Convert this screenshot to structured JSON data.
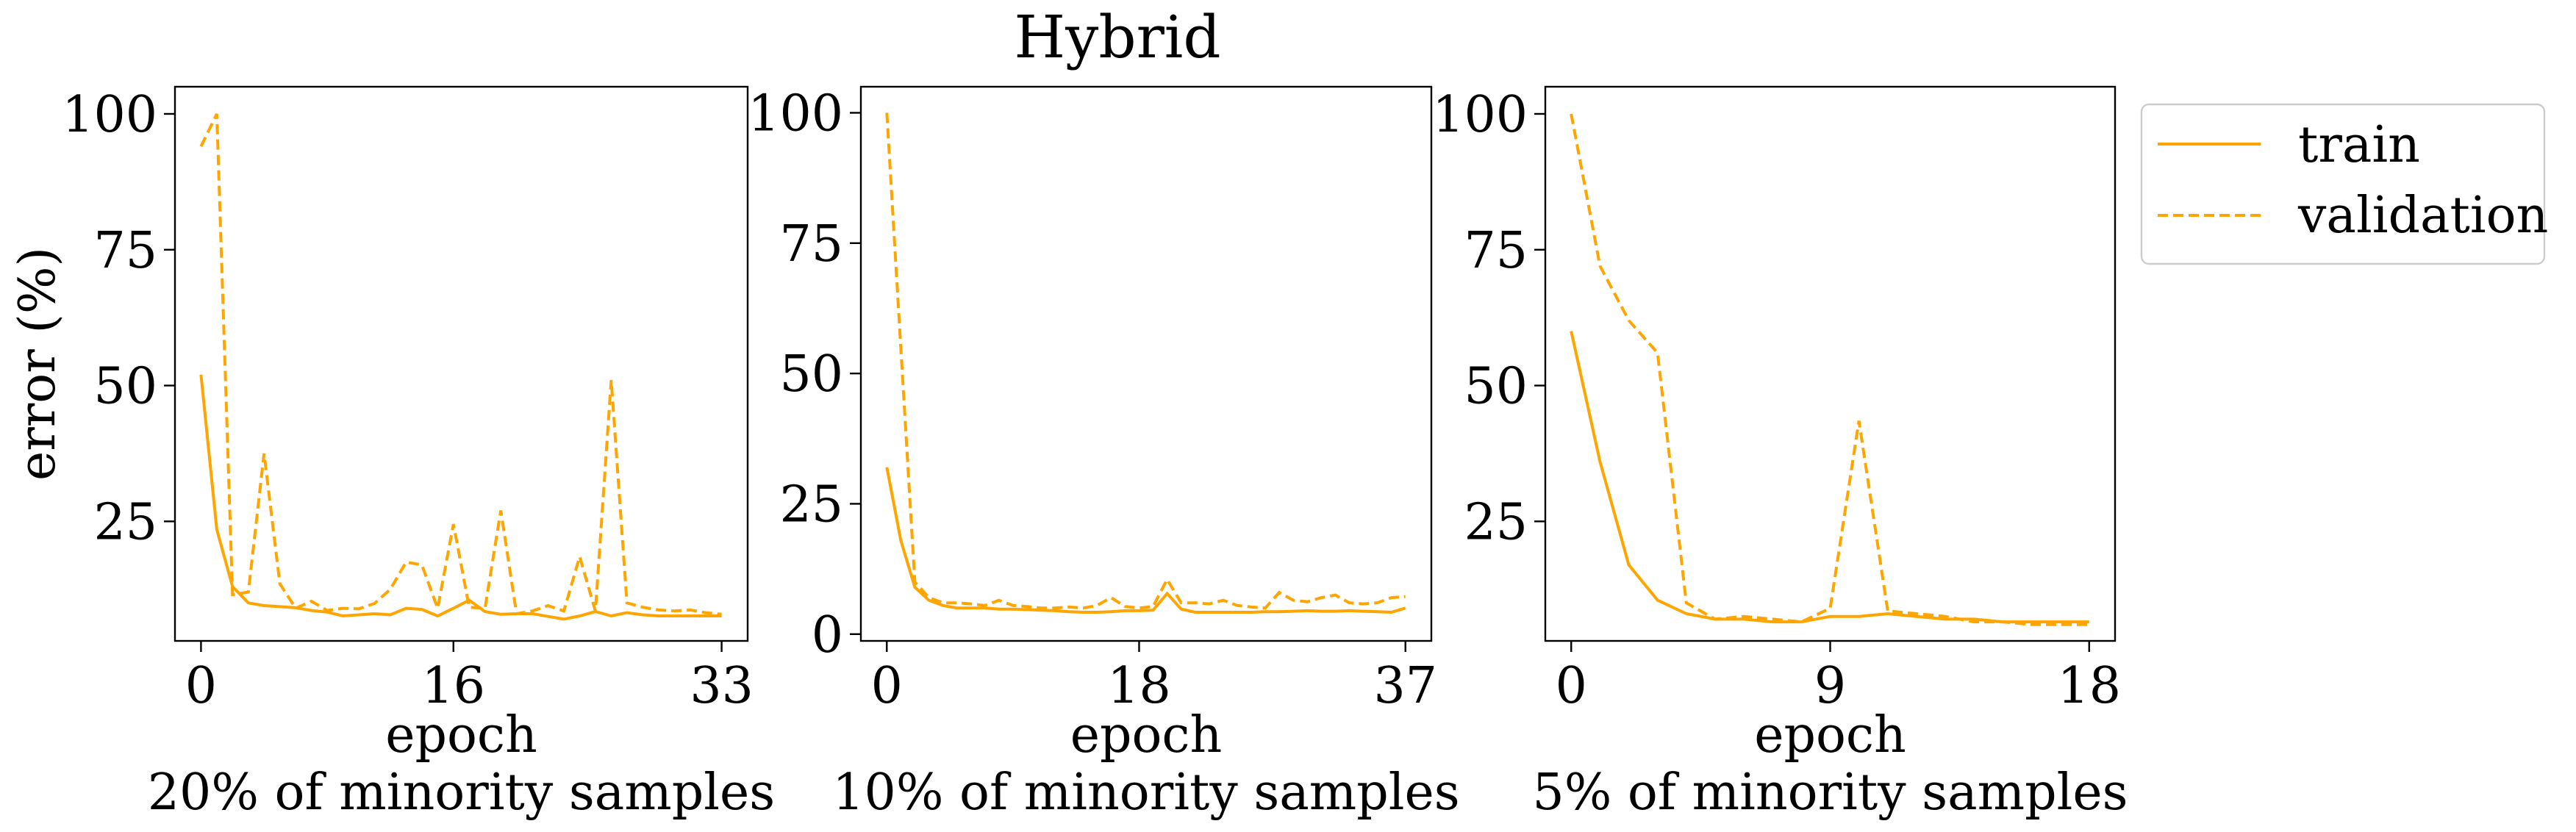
{
  "title": "Hybrid",
  "legend": {
    "train_label": "train",
    "validation_label": "validation",
    "placement": "outside-right-top"
  },
  "colors": {
    "series": "#ffa500"
  },
  "chart_data": [
    {
      "type": "line",
      "title": "",
      "xlabel": "epoch\n20% of minority samples",
      "xlabel_lines": [
        "epoch",
        "20% of minority samples"
      ],
      "ylabel": "error (%)",
      "xlim": [
        -1.65,
        34.65
      ],
      "ylim": [
        3.0,
        105.0
      ],
      "xticks": [
        0,
        16,
        33
      ],
      "yticks": [
        25,
        50,
        75,
        100
      ],
      "series": [
        {
          "name": "train",
          "style": "solid",
          "x": [
            0,
            1,
            2,
            3,
            4,
            5,
            6,
            7,
            8,
            9,
            10,
            11,
            12,
            13,
            14,
            15,
            16,
            17,
            18,
            19,
            20,
            21,
            22,
            23,
            24,
            25,
            26,
            27,
            28,
            29,
            30,
            31,
            32,
            33
          ],
          "y": [
            52,
            23.5,
            13,
            10,
            9.5,
            9.3,
            9.1,
            8.6,
            8.3,
            7.6,
            7.8,
            8,
            7.8,
            9,
            8.8,
            7.6,
            9,
            10.5,
            8.4,
            7.9,
            8,
            8,
            7.5,
            7,
            7.6,
            8.4,
            7.6,
            8.2,
            7.8,
            7.6,
            7.6,
            7.6,
            7.6,
            7.6
          ]
        },
        {
          "name": "validation",
          "style": "dashed",
          "x": [
            0,
            1,
            2,
            3,
            4,
            5,
            6,
            7,
            8,
            9,
            10,
            11,
            12,
            13,
            14,
            15,
            16,
            17,
            18,
            19,
            20,
            21,
            22,
            23,
            24,
            25,
            26,
            27,
            28,
            29,
            30,
            31,
            32,
            33
          ],
          "y": [
            94,
            100,
            11.5,
            12,
            37.5,
            13.5,
            9,
            10.3,
            8.6,
            9,
            8.9,
            9.9,
            12.5,
            17.5,
            17,
            9,
            24.5,
            9.2,
            9,
            27,
            8,
            8.5,
            9.5,
            8.5,
            18.5,
            8.5,
            51,
            10,
            9.2,
            8.7,
            8.5,
            8.7,
            8.2,
            7.9
          ]
        }
      ]
    },
    {
      "type": "line",
      "title": "",
      "xlabel": "epoch\n10% of minority samples",
      "xlabel_lines": [
        "epoch",
        "10% of minority samples"
      ],
      "ylabel": "",
      "xlim": [
        -1.85,
        38.85
      ],
      "ylim": [
        -1.3,
        105.0
      ],
      "xticks": [
        0,
        18,
        37
      ],
      "yticks": [
        0,
        25,
        50,
        75,
        100
      ],
      "series": [
        {
          "name": "train",
          "style": "solid",
          "x": [
            0,
            1,
            2,
            3,
            4,
            5,
            6,
            7,
            8,
            9,
            10,
            11,
            12,
            13,
            14,
            15,
            16,
            17,
            18,
            19,
            20,
            21,
            22,
            23,
            24,
            25,
            26,
            27,
            28,
            29,
            30,
            31,
            32,
            33,
            34,
            35,
            36,
            37
          ],
          "y": [
            32,
            18,
            9,
            6.5,
            5.5,
            5,
            5,
            5,
            4.8,
            4.8,
            4.7,
            4.6,
            4.5,
            4.3,
            4.2,
            4.2,
            4.3,
            4.5,
            4.5,
            4.6,
            7.8,
            4.8,
            4.2,
            4.2,
            4.2,
            4.2,
            4.2,
            4.3,
            4.3,
            4.4,
            4.5,
            4.4,
            4.4,
            4.5,
            4.4,
            4.3,
            4.2,
            5
          ]
        },
        {
          "name": "validation",
          "style": "dashed",
          "x": [
            0,
            1,
            2,
            3,
            4,
            5,
            6,
            7,
            8,
            9,
            10,
            11,
            12,
            13,
            14,
            15,
            16,
            17,
            18,
            19,
            20,
            21,
            22,
            23,
            24,
            25,
            26,
            27,
            28,
            29,
            30,
            31,
            32,
            33,
            34,
            35,
            36,
            37
          ],
          "y": [
            100,
            55,
            10,
            7,
            6,
            6,
            5.8,
            5.5,
            6.5,
            5.5,
            5.3,
            5,
            5,
            5.2,
            5,
            5.5,
            7,
            5.3,
            5,
            5.3,
            10.5,
            6,
            6,
            5.8,
            6.5,
            5.5,
            5.2,
            5,
            8,
            6.5,
            6.2,
            7,
            7.5,
            6,
            5.8,
            6,
            7,
            7.2
          ]
        }
      ]
    },
    {
      "type": "line",
      "title": "",
      "xlabel": "epoch\n5% of minority samples",
      "xlabel_lines": [
        "epoch",
        "5% of minority samples"
      ],
      "ylabel": "",
      "xlim": [
        -0.9,
        18.9
      ],
      "ylim": [
        3.0,
        105.0
      ],
      "xticks": [
        0,
        9,
        18
      ],
      "yticks": [
        25,
        50,
        75,
        100
      ],
      "series": [
        {
          "name": "train",
          "style": "solid",
          "x": [
            0,
            1,
            2,
            3,
            4,
            5,
            6,
            7,
            8,
            9,
            10,
            11,
            12,
            13,
            14,
            15,
            16,
            17,
            18
          ],
          "y": [
            60,
            36,
            17,
            10.5,
            8,
            7,
            7,
            6.5,
            6.5,
            7.5,
            7.5,
            8,
            7.5,
            7,
            7,
            6.5,
            6.5,
            6.5,
            6.5
          ]
        },
        {
          "name": "validation",
          "style": "dashed",
          "x": [
            0,
            1,
            2,
            3,
            4,
            5,
            6,
            7,
            8,
            9,
            10,
            11,
            12,
            13,
            14,
            15,
            16,
            17,
            18
          ],
          "y": [
            100,
            72,
            62,
            56,
            10,
            7,
            7.5,
            7,
            6.5,
            9,
            43.5,
            8.5,
            8,
            7.5,
            6.5,
            6.5,
            6,
            6,
            6
          ]
        }
      ]
    }
  ]
}
